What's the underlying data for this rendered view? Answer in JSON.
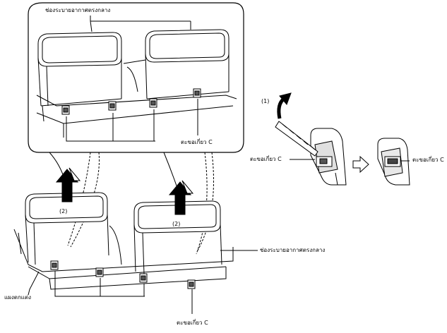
{
  "labels": {
    "center_vents_top": "ช่องระบายอากาศตรงกลาง",
    "hook_c_inset": "ตะขอเกี่ยว C",
    "hook_c_side_left": "ตะขอเกี่ยว C",
    "hook_c_side_right": "ตะขอเกี่ยว C",
    "center_vents_right": "ช่องระบายอากาศตรงกลาง",
    "trim_panel": "แผงตกแต่ง",
    "hook_c_bottom": "ตะขอเกี่ยว C"
  },
  "steps": {
    "step1": "(1)",
    "step2_left": "(2)",
    "step2_right": "(2)"
  },
  "colors": {
    "line": "#000000",
    "fill": "#ffffff",
    "shade": "#d8d8d8",
    "dark": "#555555"
  }
}
